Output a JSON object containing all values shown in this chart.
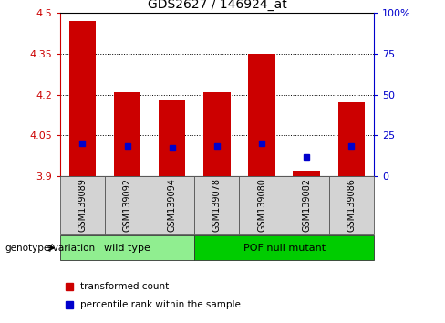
{
  "title": "GDS2627 / 146924_at",
  "samples": [
    "GSM139089",
    "GSM139092",
    "GSM139094",
    "GSM139078",
    "GSM139080",
    "GSM139082",
    "GSM139086"
  ],
  "transformed_counts": [
    4.47,
    4.21,
    4.18,
    4.21,
    4.35,
    3.92,
    4.17
  ],
  "percentile_ranks": [
    4.02,
    4.01,
    4.005,
    4.01,
    4.02,
    3.97,
    4.01
  ],
  "bar_bottom": 3.9,
  "ylim_left": [
    3.9,
    4.5
  ],
  "ylim_right": [
    0,
    100
  ],
  "yticks_left": [
    3.9,
    4.05,
    4.2,
    4.35,
    4.5
  ],
  "ytick_labels_left": [
    "3.9",
    "4.05",
    "4.2",
    "4.35",
    "4.5"
  ],
  "yticks_right": [
    0,
    25,
    50,
    75,
    100
  ],
  "ytick_labels_right": [
    "0",
    "25",
    "50",
    "75",
    "100%"
  ],
  "bar_color": "#cc0000",
  "blue_color": "#0000cc",
  "bar_width": 0.6,
  "genotype_groups": [
    {
      "label": "wild type",
      "start": 0,
      "end": 3,
      "color": "#90ee90"
    },
    {
      "label": "POF null mutant",
      "start": 3,
      "end": 7,
      "color": "#00cc00"
    }
  ],
  "genotype_label": "genotype/variation",
  "legend_items": [
    {
      "label": "transformed count",
      "color": "#cc0000"
    },
    {
      "label": "percentile rank within the sample",
      "color": "#0000cc"
    }
  ],
  "title_fontsize": 10,
  "tick_fontsize": 8,
  "label_fontsize": 7,
  "geno_fontsize": 8,
  "legend_fontsize": 7.5
}
